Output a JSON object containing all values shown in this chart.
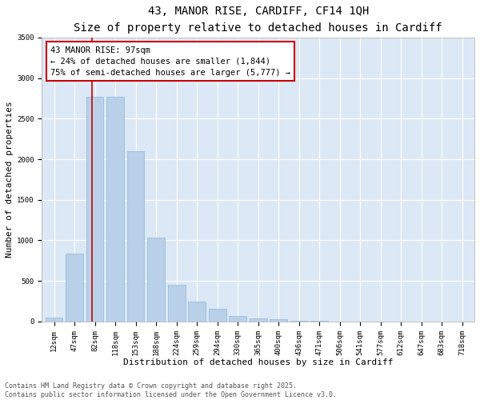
{
  "title_line1": "43, MANOR RISE, CARDIFF, CF14 1QH",
  "title_line2": "Size of property relative to detached houses in Cardiff",
  "xlabel": "Distribution of detached houses by size in Cardiff",
  "ylabel": "Number of detached properties",
  "categories": [
    "12sqm",
    "47sqm",
    "82sqm",
    "118sqm",
    "153sqm",
    "188sqm",
    "224sqm",
    "259sqm",
    "294sqm",
    "330sqm",
    "365sqm",
    "400sqm",
    "436sqm",
    "471sqm",
    "506sqm",
    "541sqm",
    "577sqm",
    "612sqm",
    "647sqm",
    "683sqm",
    "718sqm"
  ],
  "values": [
    50,
    840,
    2770,
    2770,
    2100,
    1030,
    455,
    245,
    160,
    65,
    40,
    27,
    12,
    5,
    2,
    1,
    0,
    0,
    0,
    0,
    0
  ],
  "bar_color": "#b8d0e8",
  "bar_edge_color": "#90b8d8",
  "bg_color": "#dce8f5",
  "grid_color": "#ffffff",
  "annotation_line_color": "#cc0000",
  "annotation_box_text": "43 MANOR RISE: 97sqm\n← 24% of detached houses are smaller (1,844)\n75% of semi-detached houses are larger (5,777) →",
  "annotation_box_color": "#cc0000",
  "ylim": [
    0,
    3500
  ],
  "yticks": [
    0,
    500,
    1000,
    1500,
    2000,
    2500,
    3000,
    3500
  ],
  "footer_line1": "Contains HM Land Registry data © Crown copyright and database right 2025.",
  "footer_line2": "Contains public sector information licensed under the Open Government Licence v3.0.",
  "title_fontsize": 10,
  "subtitle_fontsize": 9,
  "axis_label_fontsize": 8,
  "tick_fontsize": 6.5,
  "annotation_fontsize": 7.5,
  "footer_fontsize": 6
}
